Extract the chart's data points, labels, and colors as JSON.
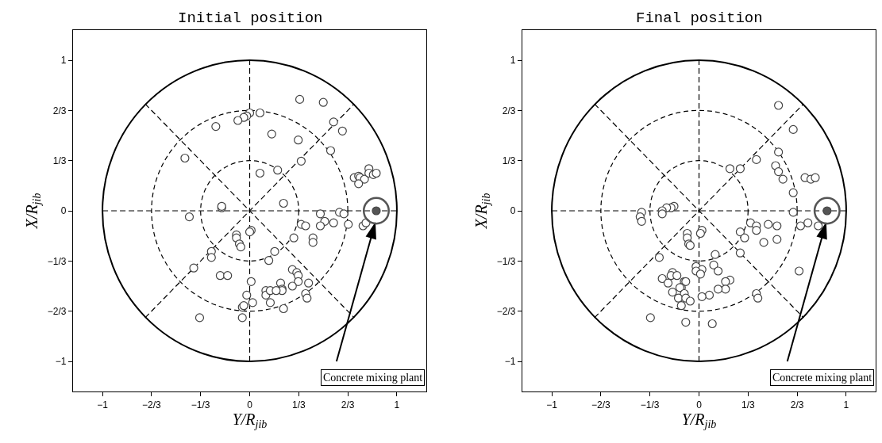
{
  "chart_data": [
    {
      "type": "scatter",
      "title": "Initial position",
      "xlabel": "Y/R$_{jib}$",
      "ylabel": "X/R$_{jib}$",
      "xlim": [
        -1.2,
        1.2
      ],
      "ylim": [
        -1.2,
        1.2
      ],
      "xticks": [
        {
          "value": -1,
          "label": "−1"
        },
        {
          "value": -0.6667,
          "label": "−2/3"
        },
        {
          "value": -0.3333,
          "label": "−1/3"
        },
        0,
        {
          "value": 0.3333,
          "label": "1/3"
        },
        {
          "value": 0.6667,
          "label": "2/3"
        },
        1
      ],
      "yticks": [
        {
          "value": -1,
          "label": "−1"
        },
        {
          "value": -0.6667,
          "label": "−2/3"
        },
        {
          "value": -0.3333,
          "label": "−1/3"
        },
        0,
        {
          "value": 0.3333,
          "label": "1/3"
        },
        {
          "value": 0.6667,
          "label": "2/3"
        },
        1
      ],
      "annotations": [
        "Concrete mixing plant"
      ],
      "series": [
        {
          "type": "line",
          "color": "#000000",
          "line_style": "dashed",
          "x": [
            -1,
            1
          ],
          "values": [
            0,
            0
          ]
        },
        {
          "type": "line",
          "color": "#000000",
          "line_style": "dashed",
          "x": [
            0,
            0
          ],
          "values": [
            -1,
            1
          ]
        },
        {
          "type": "line",
          "color": "#000000",
          "line_style": "dashed",
          "x": [
            -0.71,
            0.71
          ],
          "values": [
            -0.71,
            0.71
          ]
        },
        {
          "type": "line",
          "color": "#000000",
          "line_style": "dashed",
          "x": [
            -0.71,
            0.71
          ],
          "values": [
            0.71,
            -0.71
          ]
        },
        {
          "color": "#ffffff",
          "marker": "circle",
          "x": [
            0.34,
            0.5,
            0.0,
            -0.02,
            -0.04,
            -0.08,
            0.07,
            -0.23,
            0.57,
            0.63,
            0.15,
            0.33,
            0.55,
            -0.44,
            0.35,
            0.19,
            0.07,
            0.71,
            0.74,
            0.75,
            0.78,
            0.74,
            0.81,
            0.81,
            0.84,
            0.86,
            0.23,
            -0.19,
            -0.19,
            -0.41,
            0.48,
            0.61,
            0.64,
            0.77,
            0.79,
            0.51,
            0.48,
            0.57,
            0.67,
            0.35,
            0.38,
            0.01,
            0.0,
            -0.09,
            -0.09,
            -0.07,
            -0.06,
            0.3,
            0.43,
            0.43,
            0.17,
            0.13,
            -0.26,
            -0.26,
            -0.38,
            -0.2,
            -0.15,
            0.01,
            0.29,
            0.32,
            0.33,
            0.33,
            0.4,
            0.29,
            0.21,
            0.22,
            0.22,
            0.11,
            0.11,
            0.14,
            0.18,
            0.38,
            0.39,
            -0.02,
            0.02,
            0.14,
            0.23,
            -0.05,
            -0.04,
            -0.34,
            -0.05
          ],
          "values": [
            0.74,
            0.72,
            0.65,
            0.63,
            0.62,
            0.6,
            0.65,
            0.56,
            0.59,
            0.53,
            0.51,
            0.47,
            0.4,
            0.35,
            0.33,
            0.27,
            0.25,
            0.22,
            0.23,
            0.22,
            0.21,
            0.18,
            0.28,
            0.25,
            0.24,
            0.25,
            0.05,
            0.02,
            0.03,
            -0.04,
            -0.02,
            -0.01,
            -0.02,
            -0.1,
            -0.08,
            -0.07,
            -0.1,
            -0.08,
            -0.09,
            -0.09,
            -0.1,
            -0.13,
            -0.14,
            -0.16,
            -0.18,
            -0.22,
            -0.24,
            -0.18,
            -0.18,
            -0.21,
            -0.27,
            -0.33,
            -0.27,
            -0.31,
            -0.38,
            -0.43,
            -0.43,
            -0.47,
            -0.39,
            -0.41,
            -0.43,
            -0.47,
            -0.48,
            -0.5,
            -0.48,
            -0.52,
            -0.53,
            -0.53,
            -0.56,
            -0.53,
            -0.53,
            -0.55,
            -0.58,
            -0.56,
            -0.61,
            -0.61,
            -0.65,
            -0.64,
            -0.63,
            -0.71,
            -0.71
          ]
        },
        {
          "color": "#555555",
          "marker": "circle",
          "x": [
            0.86
          ],
          "values": [
            0
          ]
        }
      ]
    },
    {
      "type": "scatter",
      "title": "Final position",
      "xlabel": "Y/R$_{jib}$",
      "ylabel": "X/R$_{jib}$",
      "xlim": [
        -1.2,
        1.2
      ],
      "ylim": [
        -1.2,
        1.2
      ],
      "xticks": [
        {
          "value": -1,
          "label": "−1"
        },
        {
          "value": -0.6667,
          "label": "−2/3"
        },
        {
          "value": -0.3333,
          "label": "−1/3"
        },
        0,
        {
          "value": 0.3333,
          "label": "1/3"
        },
        {
          "value": 0.6667,
          "label": "2/3"
        },
        1
      ],
      "yticks": [
        {
          "value": -1,
          "label": "−1"
        },
        {
          "value": -0.6667,
          "label": "−2/3"
        },
        {
          "value": -0.3333,
          "label": "−1/3"
        },
        0,
        {
          "value": 0.3333,
          "label": "1/3"
        },
        {
          "value": 0.6667,
          "label": "2/3"
        },
        1
      ],
      "annotations": [
        "Concrete mixing plant"
      ],
      "series": [
        {
          "type": "line",
          "color": "#000000",
          "line_style": "dashed",
          "x": [
            -1,
            1
          ],
          "values": [
            0,
            0
          ]
        },
        {
          "type": "line",
          "color": "#000000",
          "line_style": "dashed",
          "x": [
            0,
            0
          ],
          "values": [
            -1,
            1
          ]
        },
        {
          "type": "line",
          "color": "#000000",
          "line_style": "dashed",
          "x": [
            -0.71,
            0.71
          ],
          "values": [
            -0.71,
            0.71
          ]
        },
        {
          "type": "line",
          "color": "#000000",
          "line_style": "dashed",
          "x": [
            -0.71,
            0.71
          ],
          "values": [
            0.71,
            -0.71
          ]
        },
        {
          "color": "#ffffff",
          "marker": "circle",
          "x": [
            0.54,
            0.64,
            0.54,
            0.39,
            0.21,
            0.28,
            0.52,
            0.54,
            0.57,
            0.72,
            0.76,
            0.79,
            0.64,
            -0.17,
            -0.19,
            -0.22,
            -0.25,
            -0.39,
            0.64,
            -0.4,
            -0.39,
            -0.25,
            0.69,
            0.74,
            0.81,
            0.35,
            0.39,
            0.39,
            0.47,
            0.53,
            0.28,
            0.31,
            0.53,
            0.44,
            0.02,
            0.01,
            -0.08,
            -0.08,
            -0.07,
            -0.06,
            0.28,
            0.11,
            -0.27,
            0.1,
            0.13,
            -0.02,
            0.02,
            -0.02,
            0.01,
            -0.18,
            -0.19,
            -0.15,
            -0.25,
            -0.21,
            -0.1,
            -0.09,
            -0.12,
            -0.13,
            -0.18,
            -0.1,
            -0.14,
            -0.09,
            -0.06,
            -0.12,
            0.21,
            0.18,
            0.18,
            0.13,
            0.07,
            0.02,
            0.39,
            0.4,
            0.68,
            -0.33,
            -0.09,
            0.09
          ],
          "values": [
            0.7,
            0.54,
            0.39,
            0.34,
            0.28,
            0.28,
            0.3,
            0.26,
            0.21,
            0.22,
            0.21,
            0.22,
            0.12,
            0.03,
            0.02,
            0.02,
            0.0,
            -0.01,
            -0.01,
            -0.04,
            -0.07,
            -0.02,
            -0.1,
            -0.08,
            -0.1,
            -0.08,
            -0.1,
            -0.13,
            -0.09,
            -0.1,
            -0.14,
            -0.18,
            -0.19,
            -0.21,
            -0.13,
            -0.15,
            -0.15,
            -0.18,
            -0.22,
            -0.23,
            -0.28,
            -0.29,
            -0.31,
            -0.36,
            -0.4,
            -0.37,
            -0.39,
            -0.4,
            -0.42,
            -0.41,
            -0.43,
            -0.43,
            -0.45,
            -0.48,
            -0.47,
            -0.47,
            -0.51,
            -0.51,
            -0.54,
            -0.55,
            -0.58,
            -0.58,
            -0.6,
            -0.63,
            -0.46,
            -0.47,
            -0.52,
            -0.52,
            -0.56,
            -0.57,
            -0.55,
            -0.58,
            -0.4,
            -0.71,
            -0.74,
            -0.75
          ]
        },
        {
          "color": "#555555",
          "marker": "circle",
          "x": [
            0.87
          ],
          "values": [
            0
          ]
        }
      ]
    }
  ]
}
